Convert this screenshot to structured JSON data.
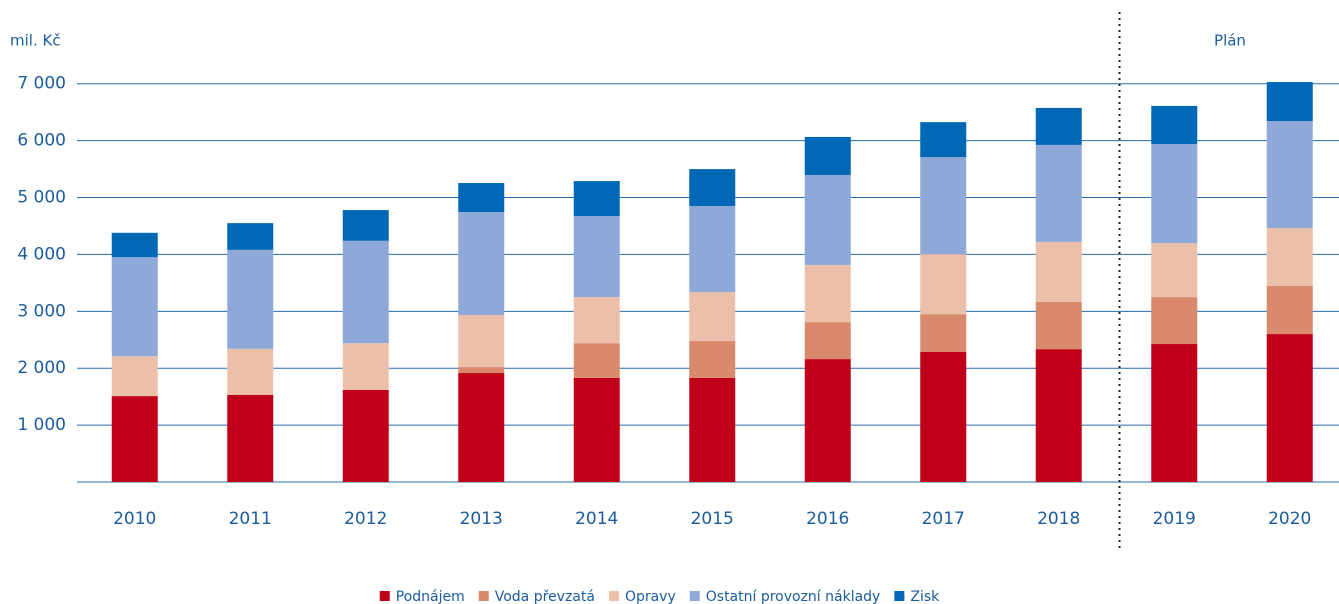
{
  "chart_data": {
    "type": "stacked_bar",
    "y_axis_label": "mil. Kč",
    "annotation": "Plán",
    "categories": [
      "2010",
      "2011",
      "2012",
      "2013",
      "2014",
      "2015",
      "2016",
      "2017",
      "2018",
      "2019",
      "2020"
    ],
    "series": [
      {
        "name": "Podnájem",
        "color": "#c00018",
        "values": [
          1510,
          1530,
          1620,
          1915,
          1830,
          1830,
          2160,
          2285,
          2335,
          2425,
          2600
        ]
      },
      {
        "name": "Voda převzatá",
        "color": "#d98a6c",
        "values": [
          0,
          0,
          0,
          105,
          610,
          650,
          650,
          665,
          830,
          825,
          845
        ]
      },
      {
        "name": "Opravy",
        "color": "#ebbfaa",
        "values": [
          700,
          810,
          820,
          915,
          810,
          860,
          1005,
          1055,
          1055,
          950,
          1020
        ]
      },
      {
        "name": "Ostatní provozní náklady",
        "color": "#8ea9d8",
        "values": [
          1740,
          1740,
          1800,
          1810,
          1425,
          1510,
          1580,
          1705,
          1705,
          1740,
          1880
        ]
      },
      {
        "name": "Zisk",
        "color": "#0068b4",
        "values": [
          430,
          470,
          540,
          510,
          615,
          650,
          670,
          615,
          650,
          670,
          685
        ]
      }
    ],
    "ylim": [
      0,
      7500
    ],
    "yticks": [
      {
        "value": 1000,
        "label": "1 000"
      },
      {
        "value": 2000,
        "label": "2 000"
      },
      {
        "value": 3000,
        "label": "3 000"
      },
      {
        "value": 4000,
        "label": "4 000"
      },
      {
        "value": 5000,
        "label": "5 000"
      },
      {
        "value": 6000,
        "label": "6 000"
      },
      {
        "value": 7000,
        "label": "7 000"
      }
    ],
    "grid": true
  }
}
